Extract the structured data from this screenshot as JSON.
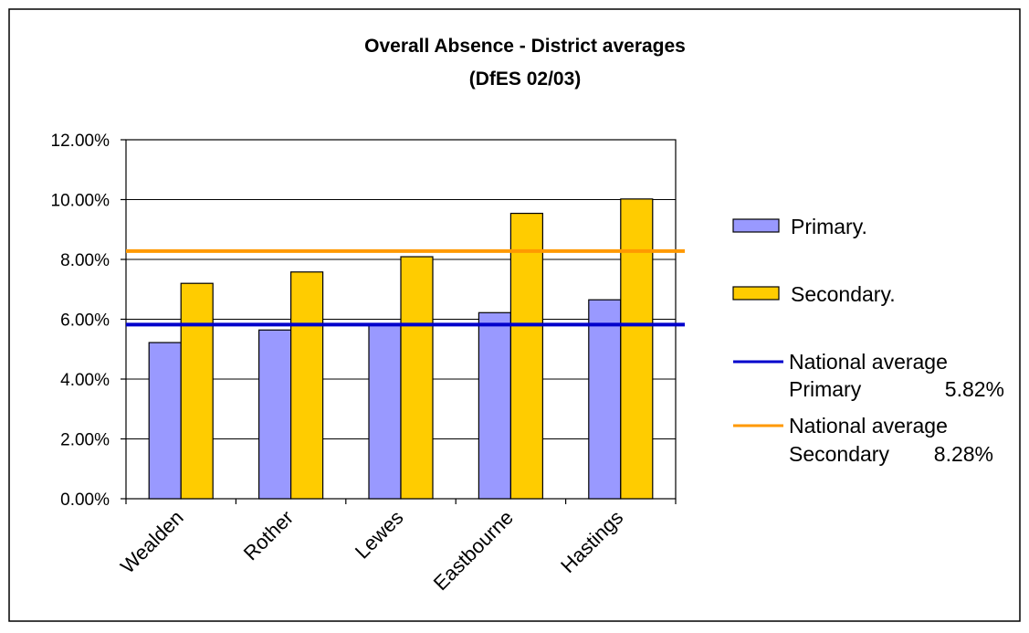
{
  "chart_data": {
    "type": "bar",
    "title": "Overall Absence - District averages",
    "subtitle": "(DfES 02/03)",
    "categories": [
      "Wealden",
      "Rother",
      "Lewes",
      "Eastbourne",
      "Hastings"
    ],
    "series": [
      {
        "name": "Primary.",
        "values": [
          5.22,
          5.64,
          5.85,
          6.22,
          6.65
        ],
        "color": "#9999ff"
      },
      {
        "name": "Secondary.",
        "values": [
          7.2,
          7.58,
          8.09,
          9.54,
          10.02
        ],
        "color": "#ffcc00"
      }
    ],
    "reference_lines": [
      {
        "label_line1": "National average",
        "label_line2": "Primary",
        "value_label": "5.82%",
        "value": 5.82,
        "color": "#0000cc"
      },
      {
        "label_line1": "National average",
        "label_line2": "Secondary",
        "value_label": "8.28%",
        "value": 8.28,
        "color": "#ff9900"
      }
    ],
    "yticks": [
      "0.00%",
      "2.00%",
      "4.00%",
      "6.00%",
      "8.00%",
      "10.00%",
      "12.00%"
    ],
    "ylim": [
      0,
      12
    ],
    "grid": true,
    "legend": "right"
  }
}
